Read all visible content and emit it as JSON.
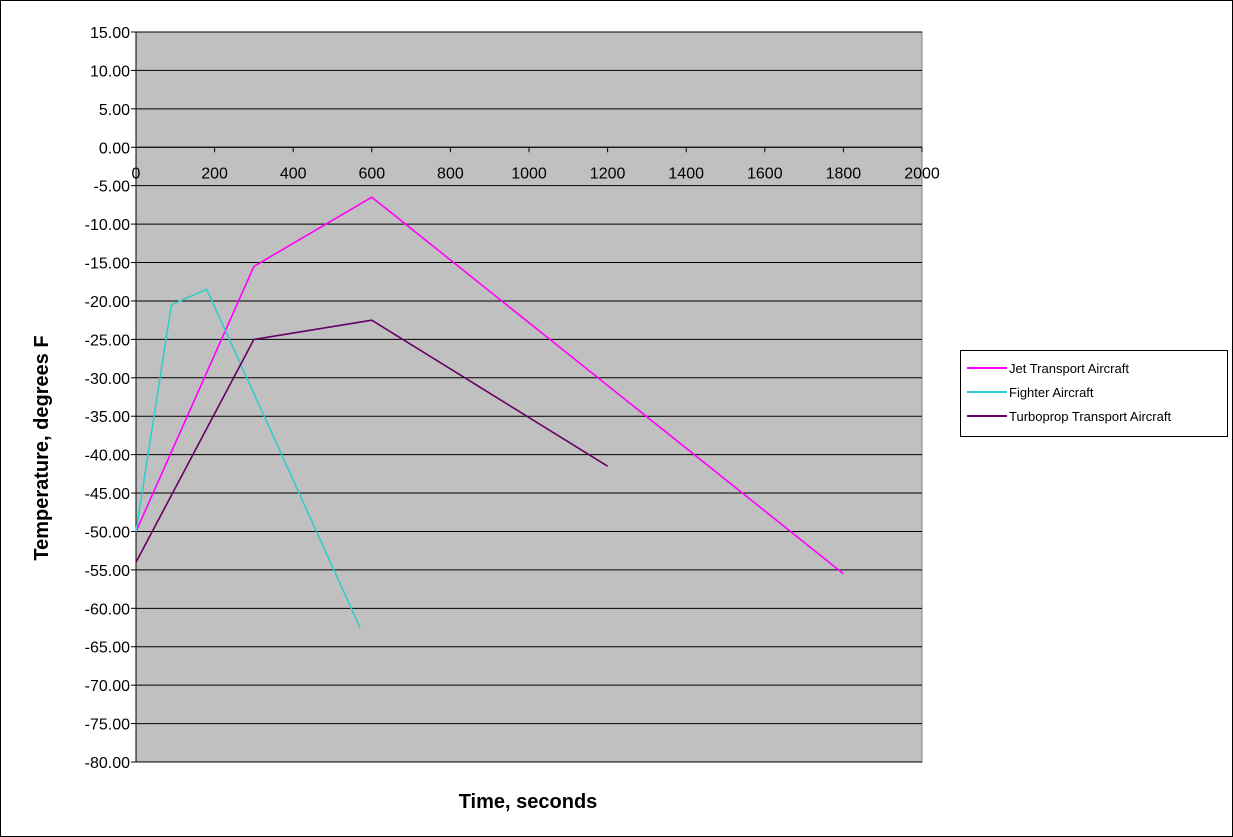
{
  "chart_data": {
    "type": "line",
    "title": "",
    "xlabel": "Time, seconds",
    "ylabel": "Temperature, degrees F",
    "xlim": [
      0,
      2000
    ],
    "ylim": [
      -80,
      15
    ],
    "x_ticks": [
      "0",
      "200",
      "400",
      "600",
      "800",
      "1000",
      "1200",
      "1400",
      "1600",
      "1800",
      "2000"
    ],
    "y_ticks": [
      "15.00",
      "10.00",
      "5.00",
      "0.00",
      "-5.00",
      "-10.00",
      "-15.00",
      "-20.00",
      "-25.00",
      "-30.00",
      "-35.00",
      "-40.00",
      "-45.00",
      "-50.00",
      "-55.00",
      "-60.00",
      "-65.00",
      "-70.00",
      "-75.00",
      "-80.00"
    ],
    "x_axis_crosses_y_at": 0,
    "grid": "horizontal",
    "plot_background": "#c0c0c0",
    "legend_position": "right",
    "series": [
      {
        "name": "Jet Transport Aircraft",
        "color": "#ff00ff",
        "x": [
          0,
          300,
          600,
          1800
        ],
        "y": [
          -50.0,
          -15.5,
          -6.5,
          -55.5
        ]
      },
      {
        "name": "Fighter Aircraft",
        "color": "#33cccc",
        "x": [
          0,
          90,
          180,
          570
        ],
        "y": [
          -50.0,
          -20.5,
          -18.5,
          -62.5
        ]
      },
      {
        "name": "Turboprop Transport Aircraft",
        "color": "#660066",
        "x": [
          0,
          300,
          600,
          1200
        ],
        "y": [
          -54.0,
          -25.0,
          -22.5,
          -41.5
        ]
      }
    ]
  }
}
